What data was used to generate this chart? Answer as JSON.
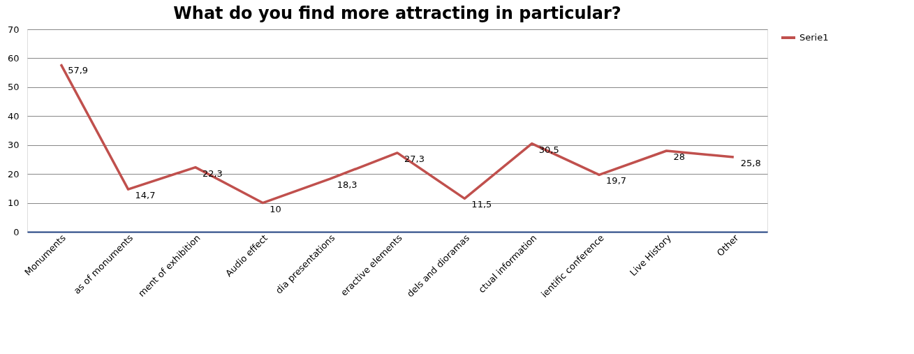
{
  "chart_data": {
    "type": "line",
    "title": "What do you find more attracting in particular?",
    "categories": [
      "Monuments",
      "as of monuments",
      "ment of exhibition",
      "Audio effect",
      "dia presentations",
      "eractive elements",
      "dels and dioramas",
      "ctual information",
      "ientific conference",
      "Live History",
      "Other"
    ],
    "series": [
      {
        "name": "Serie1",
        "color": "#c0504d",
        "values": [
          57.9,
          14.7,
          22.3,
          10,
          18.3,
          27.3,
          11.5,
          30.5,
          19.7,
          28,
          25.8
        ],
        "value_labels": [
          "57,9",
          "14,7",
          "22,3",
          "10",
          "18,3",
          "27,3",
          "11,5",
          "30,5",
          "19,7",
          "28",
          "25,8"
        ]
      }
    ],
    "ylim": [
      0,
      70
    ],
    "yticks": [
      0,
      10,
      20,
      30,
      40,
      50,
      60,
      70
    ],
    "grid": "y",
    "legend": "right",
    "marker": "none",
    "line_style": "solid"
  }
}
